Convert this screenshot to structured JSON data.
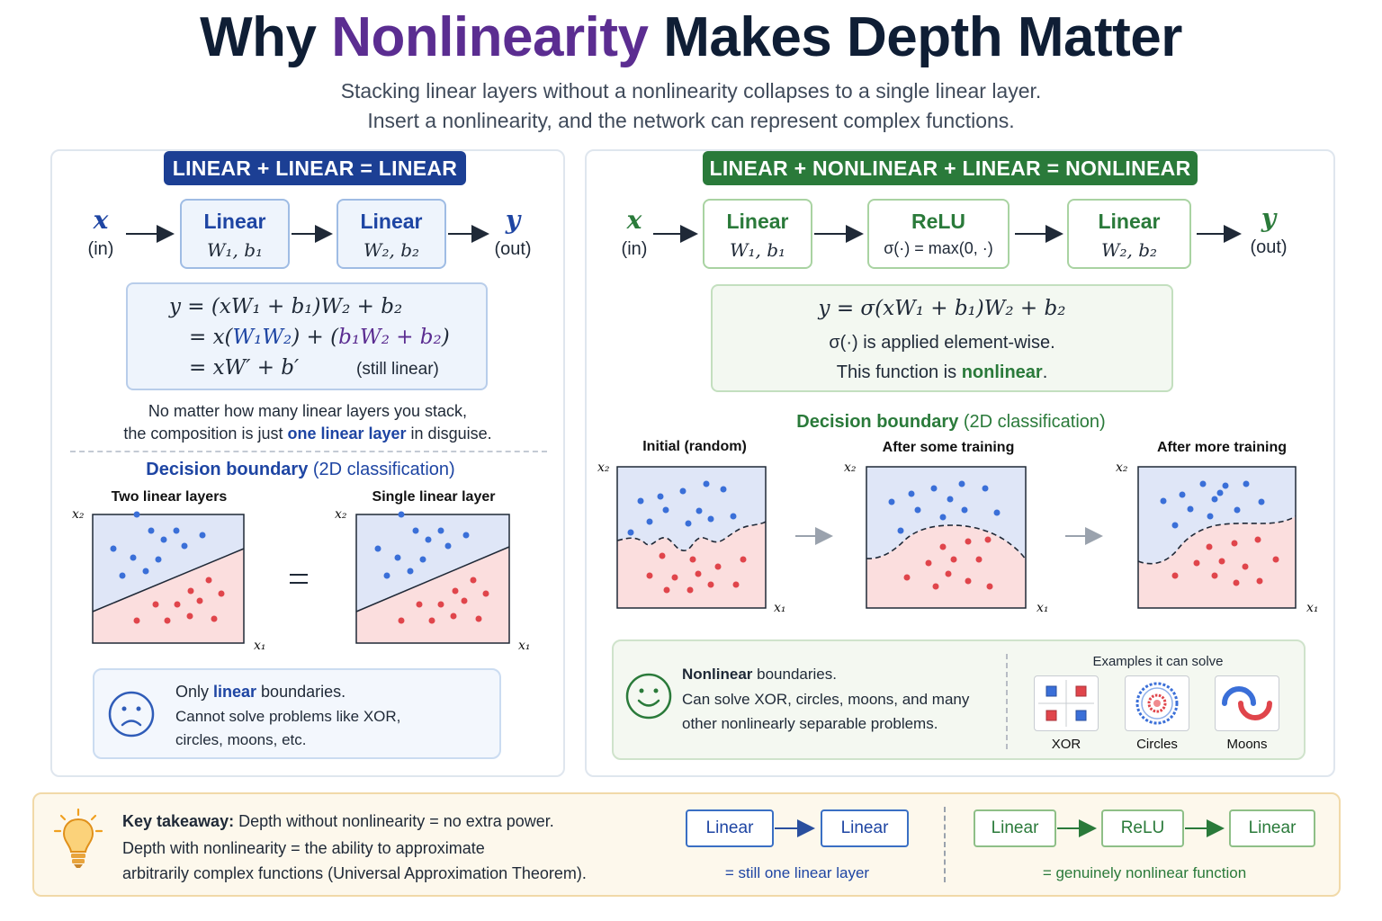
{
  "header": {
    "title_pre": "Why ",
    "title_accent": "Nonlinearity",
    "title_post": " Makes Depth Matter",
    "subtitle_line1": "Stacking linear layers without a nonlinearity collapses to a single linear layer.",
    "subtitle_line2": "Insert a nonlinearity, and the network can represent complex functions."
  },
  "left": {
    "pill": "LINEAR + LINEAR = LINEAR",
    "input_var": "x",
    "input_label": "(in)",
    "output_var": "y",
    "output_label": "(out)",
    "layer1": {
      "title": "Linear",
      "params": "W₁, b₁"
    },
    "layer2": {
      "title": "Linear",
      "params": "W₂, b₂"
    },
    "eq1": "y  =  (xW₁ + b₁)W₂ + b₂",
    "eq2_pre": "=  x(",
    "eq2_w": "W₁W₂",
    "eq2_mid": ")  +  (",
    "eq2_b": "b₁W₂ + b₂",
    "eq2_post": ")",
    "eq3": "=  xW′ + b′",
    "eq3_note": "(still linear)",
    "note_line1": "No matter how many linear layers you stack,",
    "note_line2_pre": "the composition is just ",
    "note_line2_hl": "one linear layer",
    "note_line2_post": " in disguise.",
    "section_title": "Decision boundary",
    "section_paren": "(2D classification)",
    "plot1_label": "Two linear layers",
    "plot2_label": "Single linear layer",
    "equals": "=",
    "x1": "x₁",
    "x2": "x₂",
    "info_line1_pre": "Only ",
    "info_line1_hl": "linear",
    "info_line1_post": " boundaries.",
    "info_line2": "Cannot solve problems like XOR,",
    "info_line3": "circles, moons, etc."
  },
  "right": {
    "pill": "LINEAR + NONLINEAR + LINEAR = NONLINEAR",
    "input_var": "x",
    "input_label": "(in)",
    "output_var": "y",
    "output_label": "(out)",
    "layer1": {
      "title": "Linear",
      "params": "W₁, b₁"
    },
    "relu": {
      "title": "ReLU",
      "params": "σ(·) = max(0, ·)"
    },
    "layer2": {
      "title": "Linear",
      "params": "W₂, b₂"
    },
    "eq1": "y  =  σ(xW₁ + b₁)W₂ + b₂",
    "eq2": "σ(·) is applied element-wise.",
    "eq3_pre": "This function is ",
    "eq3_hl": "nonlinear",
    "eq3_post": ".",
    "section_title": "Decision boundary",
    "section_paren": "(2D classification)",
    "plot1_label": "Initial (random)",
    "plot2_label": "After some training",
    "plot3_label": "After more training",
    "x1": "x₁",
    "x2": "x₂",
    "info_line1_hl": "Nonlinear",
    "info_line1_post": " boundaries.",
    "info_line2": "Can solve XOR, circles, moons, and many",
    "info_line3": "other nonlinearly separable problems.",
    "examples_title": "Examples it can solve",
    "ex1": "XOR",
    "ex2": "Circles",
    "ex3": "Moons"
  },
  "takeaway": {
    "label": "Key takeaway:",
    "line1": "Depth without nonlinearity = no extra power.",
    "line2": "Depth with nonlinearity = the ability to approximate",
    "line3": "arbitrarily complex functions (Universal Approximation Theorem).",
    "lin_a": "Linear",
    "lin_b": "Linear",
    "lin_caption": "= still one linear layer",
    "nl_a": "Linear",
    "nl_b": "ReLU",
    "nl_c": "Linear",
    "nl_caption": "= genuinely nonlinear function"
  },
  "colors": {
    "navy": "#0f1e35",
    "purple": "#5b2d91",
    "blue": "#1e45a3",
    "green": "#2a7a3a",
    "region_blue": "#dfe6f7",
    "region_red": "#fbdede",
    "point_blue": "#3a6fd8",
    "point_red": "#e0454b"
  },
  "icons": [
    "right-arrow-icon",
    "sad-face-icon",
    "smiley-face-icon",
    "lightbulb-icon"
  ]
}
